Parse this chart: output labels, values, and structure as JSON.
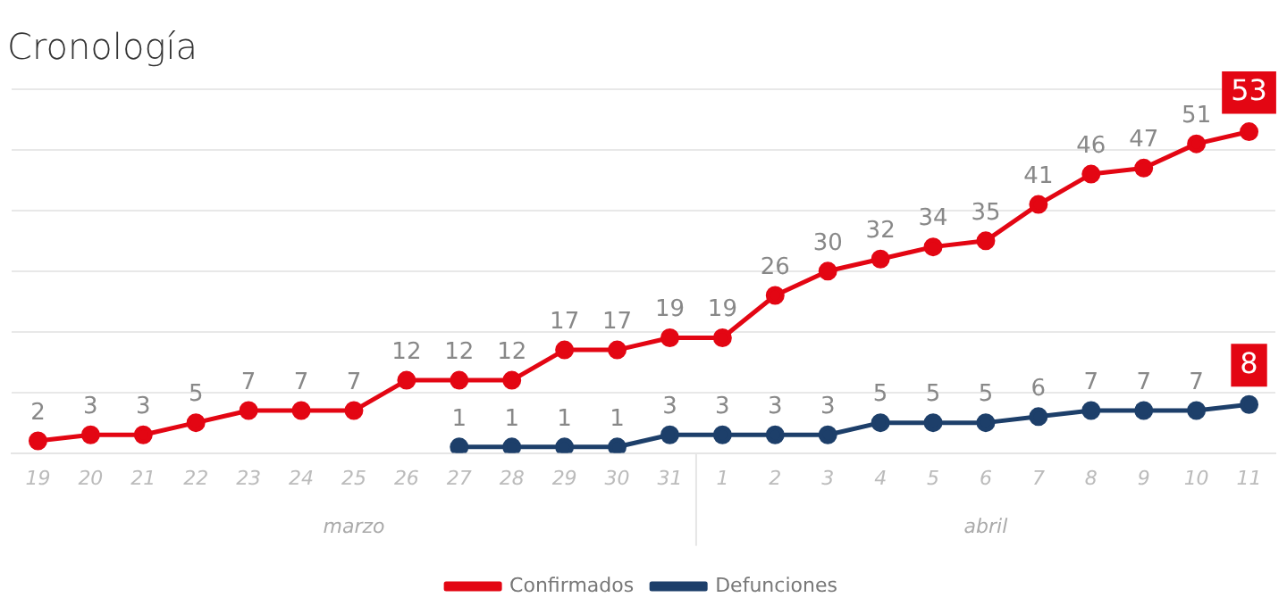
{
  "chart_data": {
    "type": "line",
    "title": "Cronología",
    "categories": [
      "19",
      "20",
      "21",
      "22",
      "23",
      "24",
      "25",
      "26",
      "27",
      "28",
      "29",
      "30",
      "31",
      "1",
      "2",
      "3",
      "4",
      "5",
      "6",
      "7",
      "8",
      "9",
      "10",
      "11"
    ],
    "series": [
      {
        "name": "Confirmados",
        "color": "#e30613",
        "values": [
          2,
          3,
          3,
          5,
          7,
          7,
          7,
          12,
          12,
          12,
          17,
          17,
          19,
          19,
          26,
          30,
          32,
          34,
          35,
          41,
          46,
          47,
          51,
          53
        ]
      },
      {
        "name": "Defunciones",
        "color": "#1d3f6a",
        "values": [
          null,
          null,
          null,
          null,
          null,
          null,
          null,
          null,
          1,
          1,
          1,
          1,
          3,
          3,
          3,
          3,
          5,
          5,
          5,
          6,
          7,
          7,
          7,
          8
        ]
      }
    ],
    "ylim": [
      0,
      60
    ],
    "yticks": [
      {
        "value": 0,
        "label": null
      },
      {
        "value": 10,
        "label": null
      },
      {
        "value": 20,
        "label": null
      },
      {
        "value": 30,
        "label": null
      },
      {
        "value": 40,
        "label": null
      },
      {
        "value": 50,
        "label": null
      },
      {
        "value": 60,
        "label": null
      }
    ],
    "tick_labels": "x",
    "grid": "y",
    "data_labels": true,
    "marker": "circle",
    "line_style": "solid",
    "legend": "bottom",
    "annotations": [
      "marzo",
      "abril"
    ]
  }
}
